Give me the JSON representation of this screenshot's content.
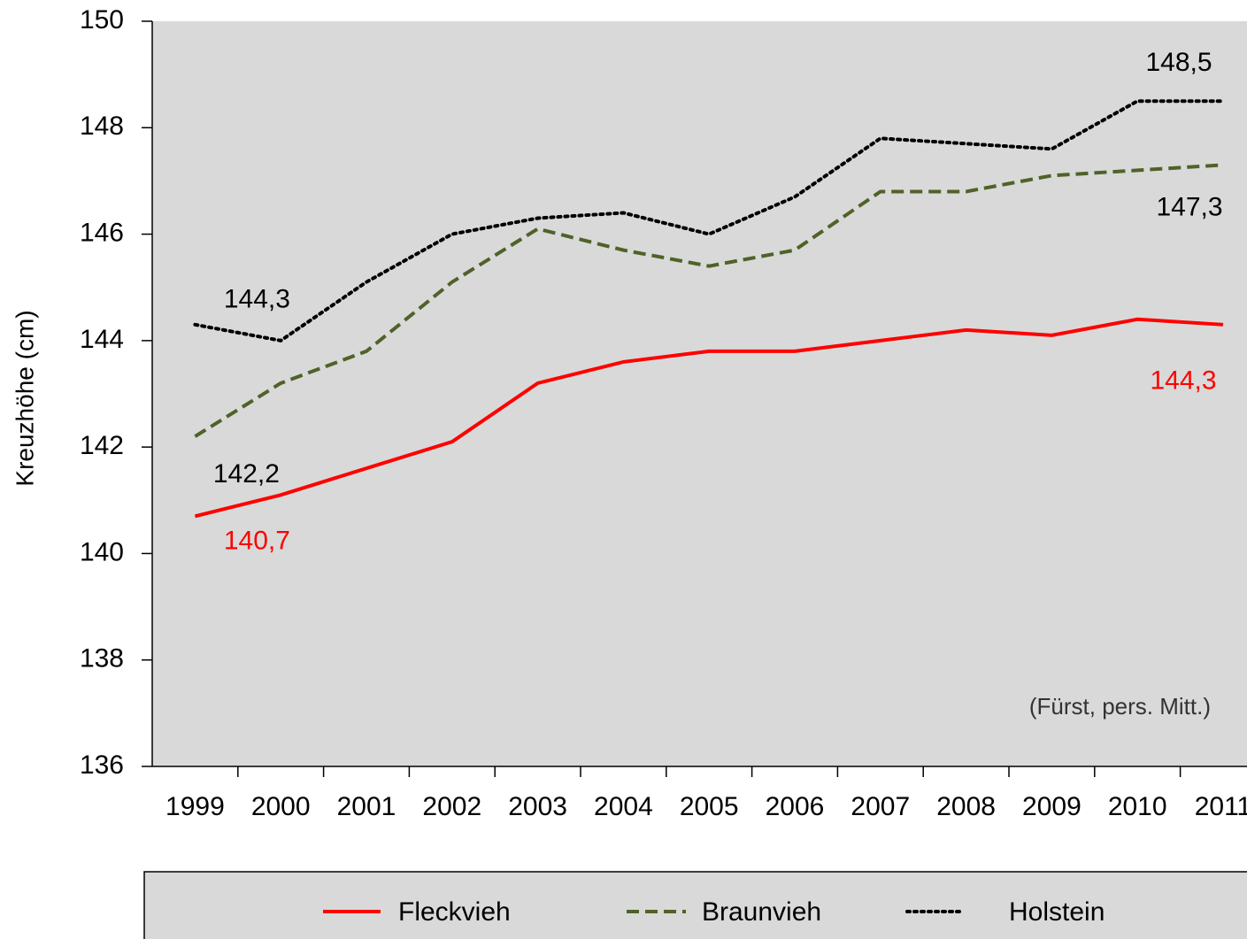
{
  "chart_data": {
    "type": "line",
    "y_label": "Kreuzhöhe (cm)",
    "annotation": "(Fürst, pers. Mitt.)",
    "categories": [
      "1999",
      "2000",
      "2001",
      "2002",
      "2003",
      "2004",
      "2005",
      "2006",
      "2007",
      "2008",
      "2009",
      "2010",
      "2011"
    ],
    "series": [
      {
        "name": "Fleckvieh",
        "color": "#ff0000",
        "style": "solid",
        "values": [
          140.7,
          141.1,
          141.6,
          142.1,
          143.2,
          143.6,
          143.8,
          143.8,
          144.0,
          144.2,
          144.1,
          144.4,
          144.3
        ],
        "value_labels": [
          "140,7",
          null,
          null,
          null,
          null,
          null,
          null,
          null,
          null,
          null,
          null,
          null,
          "144,3"
        ]
      },
      {
        "name": "Braunvieh",
        "color": "#4f6228",
        "style": "dashed",
        "values": [
          142.2,
          143.2,
          143.8,
          145.1,
          146.1,
          145.7,
          145.4,
          145.7,
          146.8,
          146.8,
          147.1,
          147.2,
          147.3
        ],
        "value_labels": [
          "142,2",
          null,
          null,
          null,
          null,
          null,
          null,
          null,
          null,
          null,
          null,
          null,
          "147,3"
        ]
      },
      {
        "name": "Holstein",
        "color": "#000000",
        "style": "dotted",
        "values": [
          144.3,
          144.0,
          145.1,
          146.0,
          146.3,
          146.4,
          146.0,
          146.7,
          147.8,
          147.7,
          147.6,
          148.5,
          148.5
        ],
        "value_labels": [
          "144,3",
          null,
          null,
          null,
          null,
          null,
          null,
          null,
          null,
          null,
          null,
          null,
          "148,5"
        ]
      }
    ],
    "ylim": [
      136,
      150
    ],
    "yticks": [
      136,
      138,
      140,
      142,
      144,
      146,
      148,
      150
    ],
    "grid": false
  }
}
